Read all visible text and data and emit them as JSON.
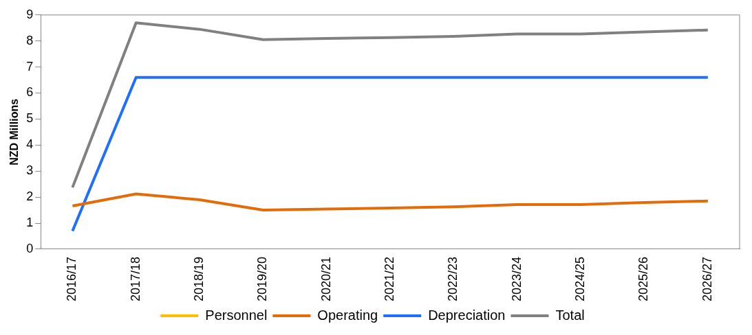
{
  "chart_data": {
    "type": "line",
    "ylabel": "NZD Millions",
    "categories": [
      "2016/17",
      "2017/18",
      "2018/19",
      "2019/20",
      "2020/21",
      "2021/22",
      "2022/23",
      "2023/24",
      "2024/25",
      "2025/26",
      "2026/27"
    ],
    "series": [
      {
        "name": "Personnel",
        "color": "#ffc000",
        "values": [
          null,
          null,
          null,
          null,
          null,
          null,
          null,
          null,
          null,
          null,
          null
        ]
      },
      {
        "name": "Operating",
        "color": "#e36c09",
        "values": [
          1.66,
          2.12,
          1.9,
          1.5,
          1.54,
          1.58,
          1.63,
          1.71,
          1.71,
          1.79,
          1.85
        ]
      },
      {
        "name": "Depreciation",
        "color": "#1f6fff",
        "values": [
          0.7,
          6.6,
          6.6,
          6.6,
          6.6,
          6.6,
          6.6,
          6.6,
          6.6,
          6.6,
          6.6
        ]
      },
      {
        "name": "Total",
        "color": "#808080",
        "values": [
          2.37,
          8.7,
          8.45,
          8.05,
          8.1,
          8.13,
          8.18,
          8.27,
          8.27,
          8.35,
          8.42
        ]
      }
    ],
    "ylim": [
      0,
      9
    ],
    "yticks": [
      0,
      1,
      2,
      3,
      4,
      5,
      6,
      7,
      8,
      9
    ],
    "grid": false,
    "legend": "bottom",
    "marker": "none",
    "line_style": "solid"
  }
}
